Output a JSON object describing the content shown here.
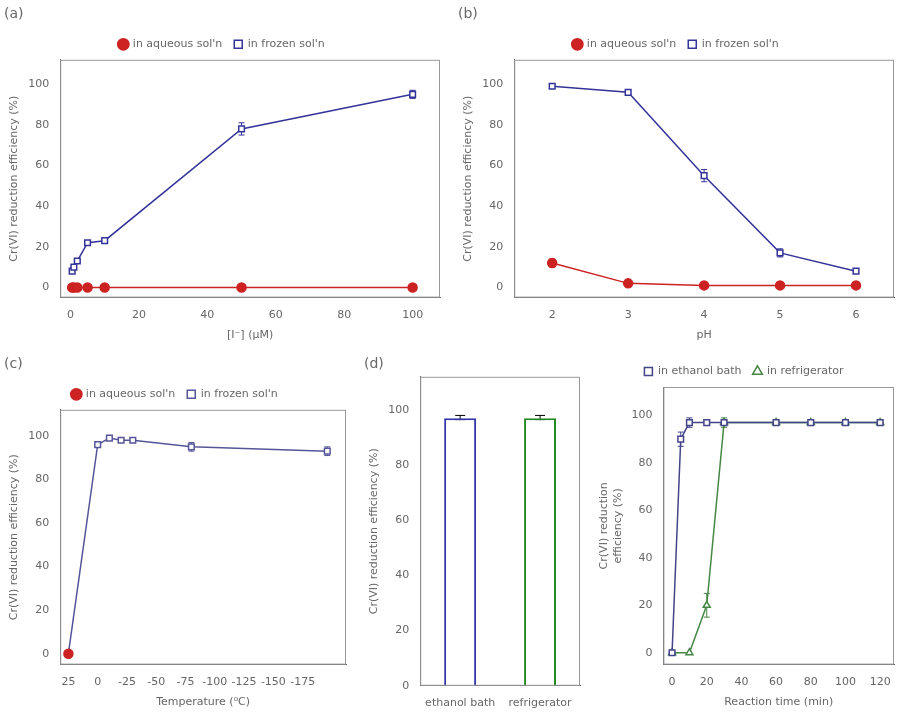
{
  "chart_data": [
    {
      "type": "line",
      "annotation": "(a)",
      "xlabel": "[I⁻] (μM)",
      "ylabel": "Cr(VI) reduction efficiency (%)",
      "xlim": [
        -3,
        108
      ],
      "ylim": [
        -5,
        112
      ],
      "xticks": [
        0,
        20,
        40,
        60,
        80,
        100
      ],
      "yticks": [
        0,
        20,
        40,
        60,
        80,
        100
      ],
      "grid": false,
      "legend": "top",
      "series": [
        {
          "name": "in aqueous sol'n",
          "color": "#cc2222",
          "marker": "circle",
          "x": [
            0.5,
            1,
            2,
            5,
            10,
            50,
            100
          ],
          "values": [
            0,
            0,
            0,
            0,
            0,
            0,
            0
          ]
        },
        {
          "name": "in frozen sol'n",
          "color": "#333399",
          "marker": "square",
          "x": [
            0.5,
            1,
            2,
            5,
            10,
            50,
            100
          ],
          "values": [
            8,
            10,
            13,
            22,
            23,
            78,
            95
          ],
          "yerr": [
            0.5,
            0.5,
            0.5,
            0.5,
            0.5,
            3,
            2
          ]
        }
      ]
    },
    {
      "type": "line",
      "annotation": "(b)",
      "xlabel": "pH",
      "ylabel": "Cr(VI) reduction efficiency (%)",
      "xlim": [
        1.5,
        6.5
      ],
      "ylim": [
        -5,
        112
      ],
      "xticks": [
        2,
        3,
        4,
        5,
        6
      ],
      "yticks": [
        0,
        20,
        40,
        60,
        80,
        100
      ],
      "grid": false,
      "legend": "top",
      "series": [
        {
          "name": "in aqueous sol'n",
          "color": "#cc2222",
          "marker": "circle",
          "x": [
            2,
            3,
            4,
            5,
            6
          ],
          "values": [
            12,
            2,
            1,
            1,
            1
          ],
          "yerr": [
            2,
            0,
            0,
            0,
            0
          ]
        },
        {
          "name": "in frozen sol'n",
          "color": "#333399",
          "marker": "square",
          "x": [
            2,
            3,
            4,
            5,
            6
          ],
          "values": [
            99,
            96,
            55,
            17,
            8
          ],
          "yerr": [
            1,
            1,
            3,
            2,
            1
          ]
        }
      ]
    },
    {
      "type": "line",
      "annotation": "(c)",
      "xlabel": "Temperature (⁰C)",
      "ylabel": "Cr(VI) reduction efficiency (%)",
      "xlim": [
        32,
        -212
      ],
      "ylim": [
        -5,
        112
      ],
      "xticks": [
        25,
        0,
        -25,
        -50,
        -75,
        -100,
        -125,
        -150,
        -175
      ],
      "yticks": [
        0,
        20,
        40,
        60,
        80,
        100
      ],
      "grid": false,
      "legend": "top",
      "series": [
        {
          "name": "in aqueous sol'n",
          "color": "#cc2222",
          "marker": "circle",
          "x": [
            25
          ],
          "values": [
            0
          ]
        },
        {
          "name": "in frozen sol'n",
          "color": "#555599",
          "marker": "square",
          "x": [
            25,
            0,
            -10,
            -20,
            -30,
            -80,
            -196
          ],
          "values": [
            0,
            96,
            99,
            98,
            98,
            95,
            93
          ],
          "yerr": [
            0,
            1,
            1,
            1,
            1,
            2,
            2
          ]
        }
      ]
    },
    {
      "type": "bar",
      "annotation": "(d)",
      "ylabel": "Cr(VI) reduction efficiency (%)",
      "categories": [
        "ethanol bath",
        "refrigerator"
      ],
      "values": [
        97,
        97
      ],
      "yerr": [
        1,
        1
      ],
      "colors": [
        "#3333aa",
        "#228822"
      ],
      "ylim": [
        0,
        112
      ],
      "yticks": [
        0,
        20,
        40,
        60,
        80,
        100
      ],
      "grid": false
    },
    {
      "type": "line",
      "xlabel": "Reaction time (min)",
      "ylabel": "Cr(VI) reduction\nefficiency (%)",
      "xlim": [
        -5,
        128
      ],
      "ylim": [
        -5,
        112
      ],
      "xticks": [
        0,
        20,
        40,
        60,
        80,
        100,
        120
      ],
      "yticks": [
        0,
        20,
        40,
        60,
        80,
        100
      ],
      "grid": false,
      "legend": "top",
      "series": [
        {
          "name": "in ethanol bath",
          "color": "#444488",
          "marker": "square",
          "x": [
            0,
            5,
            10,
            20,
            30,
            60,
            80,
            100,
            120
          ],
          "values": [
            0,
            90,
            97,
            97,
            97,
            97,
            97,
            97,
            97
          ],
          "yerr": [
            0,
            3,
            2,
            1,
            1,
            1,
            1,
            1,
            1
          ]
        },
        {
          "name": "in refrigerator",
          "color": "#448844",
          "marker": "triangle",
          "x": [
            0,
            10,
            20,
            30,
            60,
            80,
            100,
            120
          ],
          "values": [
            0,
            0,
            20,
            97,
            97,
            97,
            97,
            97
          ],
          "yerr": [
            0,
            0,
            5,
            2,
            1,
            1,
            1,
            1
          ]
        }
      ]
    }
  ]
}
